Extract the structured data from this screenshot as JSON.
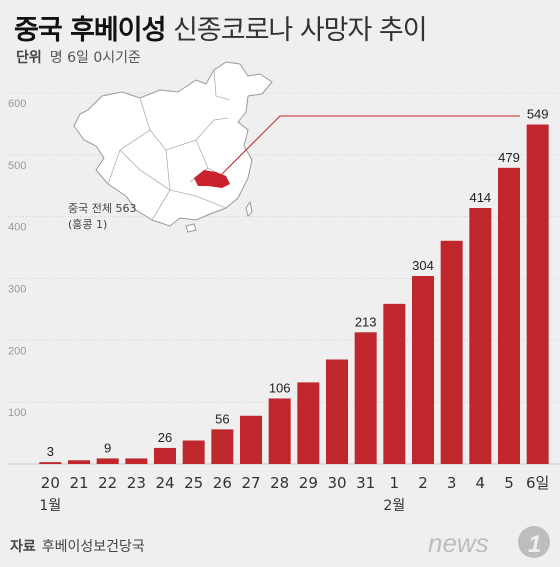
{
  "header": {
    "title_bold": "중국 후베이성",
    "title_light": "신종코로나 사망자 추이",
    "unit_label": "단위",
    "unit_text": "명  6일 0시기준"
  },
  "map": {
    "total_label": "중국 전체 563",
    "hk_label": "(홍콩 1)",
    "highlight_color": "#c8232c"
  },
  "source": {
    "label": "자료",
    "text": "후베이성보건당국"
  },
  "logo": {
    "text": "news",
    "number": "1"
  },
  "colors": {
    "bar": "#c0272d",
    "grid": "#c9c9c9",
    "axis_text": "#999999"
  },
  "chart_data": {
    "type": "bar",
    "categories": [
      "20",
      "21",
      "22",
      "23",
      "24",
      "25",
      "26",
      "27",
      "28",
      "29",
      "30",
      "31",
      "1",
      "2",
      "3",
      "4",
      "5",
      "6일"
    ],
    "month_labels": [
      {
        "label": "1월",
        "category_index": 0
      },
      {
        "label": "2월",
        "category_index": 12
      }
    ],
    "values": [
      3,
      6,
      9,
      9,
      26,
      38,
      56,
      78,
      106,
      132,
      169,
      213,
      259,
      304,
      361,
      414,
      479,
      549
    ],
    "data_labels": [
      {
        "index": 0,
        "text": "3"
      },
      {
        "index": 2,
        "text": "9"
      },
      {
        "index": 4,
        "text": "26"
      },
      {
        "index": 6,
        "text": "56"
      },
      {
        "index": 8,
        "text": "106"
      },
      {
        "index": 11,
        "text": "213"
      },
      {
        "index": 13,
        "text": "304"
      },
      {
        "index": 15,
        "text": "414"
      },
      {
        "index": 16,
        "text": "479"
      },
      {
        "index": 17,
        "text": "549"
      }
    ],
    "y_ticks": [
      0,
      100,
      200,
      300,
      400,
      500,
      600
    ],
    "ylim": [
      0,
      600
    ],
    "grid": true,
    "xlabel": "",
    "ylabel": ""
  }
}
